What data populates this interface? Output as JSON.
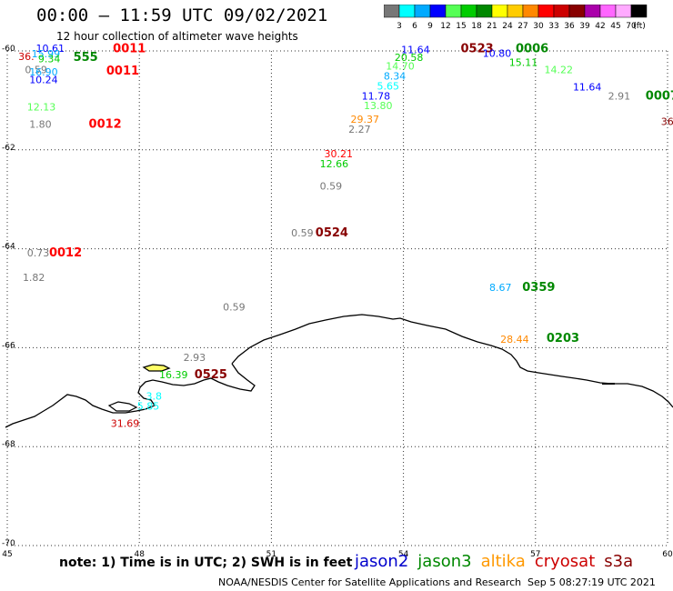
{
  "title": "00:00 – 11:59 UTC 09/02/2021",
  "subtitle": "12 hour collection of altimeter wave heights",
  "color_scale": {
    "unit": "(ft)",
    "levels": [
      {
        "label": "3",
        "color": "#777777"
      },
      {
        "label": "6",
        "color": "#00ffff"
      },
      {
        "label": "9",
        "color": "#00aaff"
      },
      {
        "label": "12",
        "color": "#0000ff"
      },
      {
        "label": "15",
        "color": "#55ff55"
      },
      {
        "label": "18",
        "color": "#00cc00"
      },
      {
        "label": "21",
        "color": "#008800"
      },
      {
        "label": "24",
        "color": "#ffff00"
      },
      {
        "label": "27",
        "color": "#ffcc00"
      },
      {
        "label": "30",
        "color": "#ff8800"
      },
      {
        "label": "33",
        "color": "#ff0000"
      },
      {
        "label": "36",
        "color": "#cc0000"
      },
      {
        "label": "39",
        "color": "#880000"
      },
      {
        "label": "42",
        "color": "#aa00aa"
      },
      {
        "label": "45",
        "color": "#ff66ff"
      },
      {
        "label": "70",
        "color": "#ffaaff"
      },
      {
        "label": "",
        "color": "#000000"
      }
    ]
  },
  "axes": {
    "lat_labels": [
      "-60",
      "-62",
      "-64",
      "-66",
      "-68",
      "-70"
    ],
    "lon_labels": [
      "45",
      "48",
      "51",
      "54",
      "57",
      "60"
    ],
    "lat_range": [
      -70,
      -60
    ],
    "lon_range": [
      45,
      60
    ]
  },
  "observations": [
    {
      "text": "36.",
      "lon": 45.25,
      "lat": -60.18,
      "color": "#cc0000"
    },
    {
      "text": "10.61",
      "lon": 45.65,
      "lat": -60.02,
      "color": "#0000ff"
    },
    {
      "text": "0011",
      "lon": 47.4,
      "lat": -60.03,
      "color": "#ff0000",
      "bold": true
    },
    {
      "text": "15.99",
      "lon": 45.55,
      "lat": -60.13,
      "color": "#00aaff"
    },
    {
      "text": "9.34",
      "lon": 45.7,
      "lat": -60.23,
      "color": "#00cc00"
    },
    {
      "text": "555",
      "lon": 46.5,
      "lat": -60.2,
      "color": "#008800",
      "bold": true
    },
    {
      "text": "0.59",
      "lon": 45.4,
      "lat": -60.45,
      "color": "#777777"
    },
    {
      "text": "16.90",
      "lon": 45.5,
      "lat": -60.5,
      "color": "#00aaff"
    },
    {
      "text": "0011",
      "lon": 47.25,
      "lat": -60.48,
      "color": "#ff0000",
      "bold": true
    },
    {
      "text": "10.24",
      "lon": 45.5,
      "lat": -60.65,
      "color": "#0000ff"
    },
    {
      "text": "12.13",
      "lon": 45.45,
      "lat": -61.2,
      "color": "#55ff55"
    },
    {
      "text": "1.80",
      "lon": 45.5,
      "lat": -61.55,
      "color": "#777777"
    },
    {
      "text": "0012",
      "lon": 46.85,
      "lat": -61.55,
      "color": "#ff0000",
      "bold": true
    },
    {
      "text": "11.64",
      "lon": 53.95,
      "lat": -60.05,
      "color": "#0000ff"
    },
    {
      "text": "0523",
      "lon": 55.3,
      "lat": -60.03,
      "color": "#880000",
      "bold": true
    },
    {
      "text": "0006",
      "lon": 56.55,
      "lat": -60.03,
      "color": "#008800",
      "bold": true
    },
    {
      "text": "10.80",
      "lon": 55.8,
      "lat": -60.12,
      "color": "#0000ff"
    },
    {
      "text": "20.58",
      "lon": 53.8,
      "lat": -60.2,
      "color": "#00cc00"
    },
    {
      "text": "15.11",
      "lon": 56.4,
      "lat": -60.3,
      "color": "#00cc00"
    },
    {
      "text": "14.70",
      "lon": 53.6,
      "lat": -60.38,
      "color": "#55ff55"
    },
    {
      "text": "14.22",
      "lon": 57.2,
      "lat": -60.45,
      "color": "#55ff55"
    },
    {
      "text": "8.34",
      "lon": 53.55,
      "lat": -60.58,
      "color": "#00aaff"
    },
    {
      "text": "5.65",
      "lon": 53.4,
      "lat": -60.78,
      "color": "#00ffff"
    },
    {
      "text": "11.64",
      "lon": 57.85,
      "lat": -60.8,
      "color": "#0000ff"
    },
    {
      "text": "11.78",
      "lon": 53.05,
      "lat": -60.98,
      "color": "#0000ff"
    },
    {
      "text": "2.91",
      "lon": 58.65,
      "lat": -60.98,
      "color": "#777777"
    },
    {
      "text": "0007",
      "lon": 59.5,
      "lat": -60.98,
      "color": "#008800",
      "bold": true
    },
    {
      "text": "13.80",
      "lon": 53.1,
      "lat": -61.18,
      "color": "#55ff55"
    },
    {
      "text": "36.",
      "lon": 59.85,
      "lat": -61.5,
      "color": "#880000"
    },
    {
      "text": "29.37",
      "lon": 52.8,
      "lat": -61.45,
      "color": "#ff8800"
    },
    {
      "text": "2.27",
      "lon": 52.75,
      "lat": -61.65,
      "color": "#777777"
    },
    {
      "text": "30.21",
      "lon": 52.2,
      "lat": -62.15,
      "color": "#ff0000"
    },
    {
      "text": "12.66",
      "lon": 52.1,
      "lat": -62.35,
      "color": "#00cc00"
    },
    {
      "text": "0.59",
      "lon": 52.1,
      "lat": -62.8,
      "color": "#777777"
    },
    {
      "text": "0.59",
      "lon": 51.45,
      "lat": -63.75,
      "color": "#777777"
    },
    {
      "text": "0524",
      "lon": 52.0,
      "lat": -63.75,
      "color": "#880000",
      "bold": true
    },
    {
      "text": "0.73",
      "lon": 45.45,
      "lat": -64.15,
      "color": "#777777"
    },
    {
      "text": "0012",
      "lon": 45.95,
      "lat": -64.15,
      "color": "#ff0000",
      "bold": true
    },
    {
      "text": "1.82",
      "lon": 45.35,
      "lat": -64.65,
      "color": "#777777"
    },
    {
      "text": "8.67",
      "lon": 55.95,
      "lat": -64.85,
      "color": "#00aaff"
    },
    {
      "text": "0359",
      "lon": 56.7,
      "lat": -64.85,
      "color": "#008800",
      "bold": true
    },
    {
      "text": "0.59",
      "lon": 49.9,
      "lat": -65.25,
      "color": "#777777"
    },
    {
      "text": "28.44",
      "lon": 56.2,
      "lat": -65.9,
      "color": "#ff8800"
    },
    {
      "text": "0203",
      "lon": 57.25,
      "lat": -65.88,
      "color": "#008800",
      "bold": true
    },
    {
      "text": "2.93",
      "lon": 49.0,
      "lat": -66.27,
      "color": "#777777"
    },
    {
      "text": "16.39",
      "lon": 48.45,
      "lat": -66.62,
      "color": "#00cc00"
    },
    {
      "text": "0525",
      "lon": 49.25,
      "lat": -66.62,
      "color": "#880000",
      "bold": true
    },
    {
      "text": "3.8",
      "lon": 48.15,
      "lat": -67.05,
      "color": "#00ffff"
    },
    {
      "text": "5.85",
      "lon": 47.95,
      "lat": -67.25,
      "color": "#00ffff"
    },
    {
      "text": "31.69",
      "lon": 47.35,
      "lat": -67.6,
      "color": "#cc0000"
    }
  ],
  "note": "note:  1) Time is in UTC;  2) SWH is in feet",
  "legend": [
    {
      "label": "jason2",
      "color": "#0000cc"
    },
    {
      "label": "jason3",
      "color": "#008800"
    },
    {
      "label": "altika",
      "color": "#ff9900"
    },
    {
      "label": "cryosat",
      "color": "#cc0000"
    },
    {
      "label": "s3a",
      "color": "#880000"
    }
  ],
  "footer": "NOAA/NESDIS Center for Satellite Applications and Research",
  "footer_time": "Sep  5 08:27:19 UTC 2021"
}
